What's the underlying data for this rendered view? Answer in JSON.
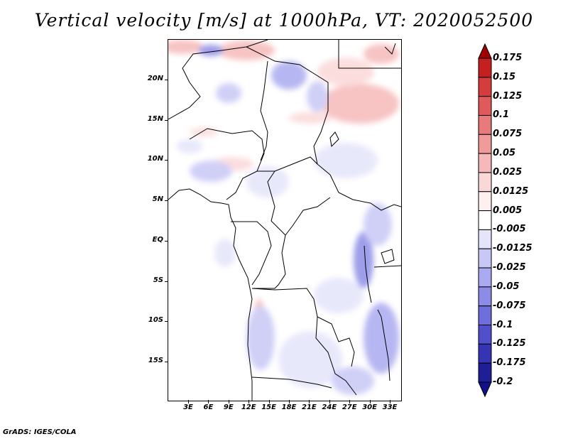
{
  "title": "Vertical velocity [m/s] at 1000hPa, VT: 2020052500",
  "credit": "GrADS: IGES/COLA",
  "y_axis_labels": [
    "20N",
    "15N",
    "10N",
    "5N",
    "EQ",
    "5S",
    "10S",
    "15S"
  ],
  "x_axis_labels": [
    "3E",
    "6E",
    "9E",
    "12E",
    "15E",
    "18E",
    "21E",
    "24E",
    "27E",
    "30E",
    "33E"
  ],
  "colorbar": {
    "labels": [
      "0.175",
      "0.15",
      "0.125",
      "0.1",
      "0.075",
      "0.05",
      "0.025",
      "0.0125",
      "0.005",
      "-0.005",
      "-0.0125",
      "-0.025",
      "-0.05",
      "-0.075",
      "-0.1",
      "-0.125",
      "-0.175",
      "-0.2"
    ],
    "colors": [
      "#a00000",
      "#c42020",
      "#d63c3c",
      "#e05a5a",
      "#e87a7a",
      "#f09a9a",
      "#f6b9b9",
      "#fbd8d8",
      "#fff0f0",
      "#ffffff",
      "#e4e4fb",
      "#c8c8f6",
      "#aaaaf0",
      "#8c8ce6",
      "#6e6edc",
      "#5050cc",
      "#3434b4",
      "#1e1e96",
      "#10108a"
    ]
  }
}
